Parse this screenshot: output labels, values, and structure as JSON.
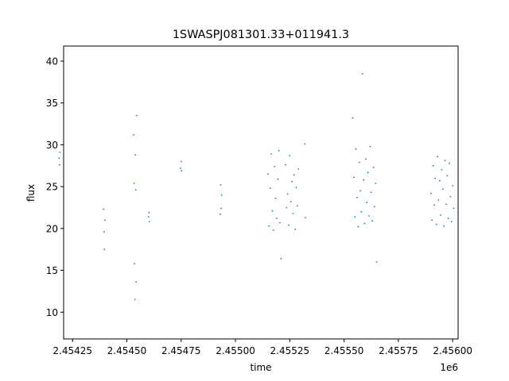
{
  "chart_data": {
    "type": "scatter",
    "title": "1SWASPJ081301.33+011941.3",
    "xlabel": "time",
    "ylabel": "flux",
    "x_offset_label": "1e6",
    "xlim": [
      2454209,
      2456025
    ],
    "ylim": [
      6.8,
      41.8
    ],
    "x_ticks": [
      2454250,
      2454500,
      2454750,
      2455000,
      2455250,
      2455500,
      2455750,
      2456000
    ],
    "x_tick_labels": [
      "2.45425",
      "2.45450",
      "2.45475",
      "2.45500",
      "2.45525",
      "2.45550",
      "2.45575",
      "2.45600"
    ],
    "y_ticks": [
      10,
      15,
      20,
      25,
      30,
      35,
      40
    ],
    "y_tick_labels": [
      "10",
      "15",
      "20",
      "25",
      "30",
      "35",
      "40"
    ],
    "grid": false,
    "marker_color": "#1f77b4",
    "series": [
      {
        "x": [
          2454188,
          2454190,
          2454192,
          2454393,
          2454395,
          2454397,
          2454399,
          2454531,
          2454533,
          2454535,
          2454537,
          2454539,
          2454541,
          2454543,
          2454545,
          2454600,
          2454602,
          2454604,
          2454748,
          2454750,
          2454752,
          2454930,
          2454932,
          2454934,
          2454936,
          2455150,
          2455155,
          2455160,
          2455165,
          2455170,
          2455175,
          2455180,
          2455185,
          2455190,
          2455195,
          2455200,
          2455205,
          2455210,
          2455230,
          2455235,
          2455240,
          2455245,
          2455250,
          2455255,
          2455260,
          2455265,
          2455270,
          2455275,
          2455280,
          2455285,
          2455290,
          2455320,
          2455322,
          2455540,
          2455545,
          2455550,
          2455555,
          2455560,
          2455565,
          2455570,
          2455575,
          2455580,
          2455585,
          2455590,
          2455595,
          2455600,
          2455605,
          2455610,
          2455615,
          2455620,
          2455625,
          2455630,
          2455635,
          2455640,
          2455645,
          2455650,
          2455900,
          2455905,
          2455910,
          2455915,
          2455920,
          2455925,
          2455930,
          2455935,
          2455940,
          2455945,
          2455950,
          2455955,
          2455960,
          2455965,
          2455970,
          2455975,
          2455980,
          2455985,
          2455990,
          2455995,
          2456000,
          2456005
        ],
        "y": [
          28.4,
          27.6,
          29.1,
          22.3,
          19.6,
          17.5,
          21.0,
          31.2,
          25.4,
          15.8,
          11.5,
          28.8,
          24.6,
          13.6,
          33.5,
          21.4,
          21.9,
          20.8,
          27.2,
          28.0,
          26.9,
          21.7,
          25.2,
          22.4,
          24.0,
          26.5,
          20.3,
          24.8,
          28.9,
          22.1,
          19.8,
          27.4,
          23.6,
          21.2,
          25.9,
          29.3,
          20.7,
          16.4,
          27.6,
          22.5,
          24.1,
          20.4,
          28.7,
          23.2,
          25.6,
          21.8,
          26.4,
          19.9,
          24.9,
          22.7,
          27.1,
          30.1,
          21.3,
          33.2,
          26.1,
          21.4,
          29.5,
          23.7,
          20.2,
          27.9,
          24.5,
          22.0,
          38.5,
          25.8,
          20.6,
          28.3,
          23.1,
          26.7,
          21.5,
          29.8,
          24.3,
          20.9,
          27.3,
          22.6,
          25.4,
          16.0,
          24.2,
          21.0,
          27.5,
          22.8,
          26.0,
          20.5,
          28.6,
          23.4,
          25.7,
          21.6,
          27.0,
          24.7,
          20.3,
          28.1,
          22.9,
          26.3,
          21.2,
          27.8,
          23.8,
          20.8,
          25.1,
          22.4
        ]
      }
    ]
  }
}
